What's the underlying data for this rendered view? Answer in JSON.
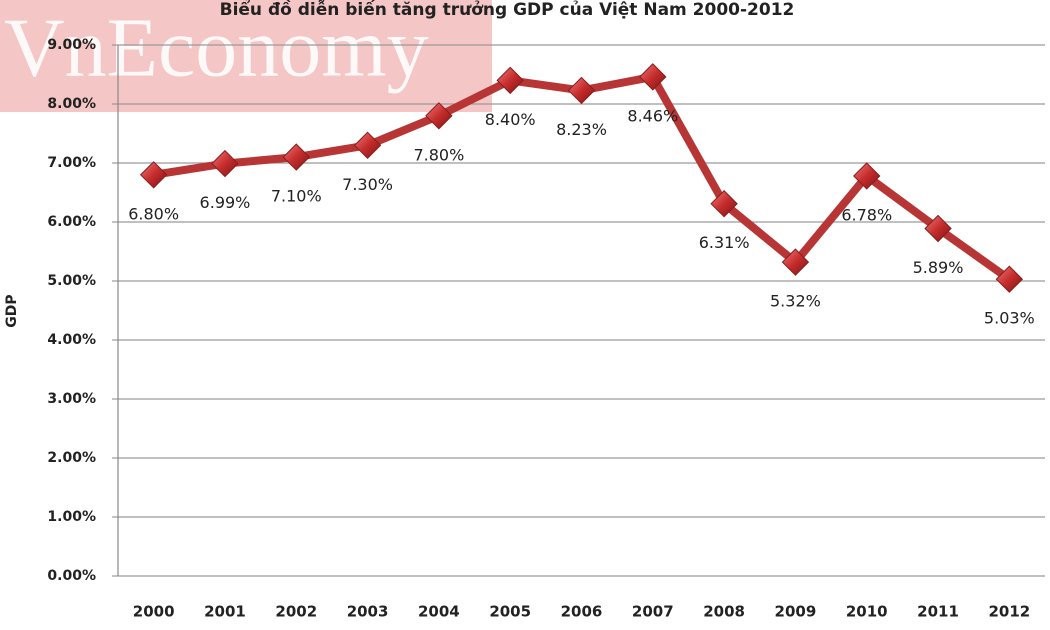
{
  "chart_data": {
    "type": "line",
    "title": "Biểu đồ diễn biến tăng trưởng GDP của Việt Nam 2000-2012",
    "watermark": "VnEconomy",
    "y_label": "GDP",
    "categories": [
      "2000",
      "2001",
      "2002",
      "2003",
      "2004",
      "2005",
      "2006",
      "2007",
      "2008",
      "2009",
      "2010",
      "2011",
      "2012"
    ],
    "values": [
      6.8,
      6.99,
      7.1,
      7.3,
      7.8,
      8.4,
      8.23,
      8.46,
      6.31,
      5.32,
      6.78,
      5.89,
      5.03
    ],
    "value_labels": [
      "6.80%",
      "6.99%",
      "7.10%",
      "7.30%",
      "7.80%",
      "8.40%",
      "8.23%",
      "8.46%",
      "6.31%",
      "5.32%",
      "6.78%",
      "5.89%",
      "5.03%"
    ],
    "color": "#b83535",
    "ylim": [
      0,
      9
    ],
    "yticks": [
      {
        "value": 0,
        "label": "0.00%"
      },
      {
        "value": 1,
        "label": "1.00%"
      },
      {
        "value": 2,
        "label": "2.00%"
      },
      {
        "value": 3,
        "label": "3.00%"
      },
      {
        "value": 4,
        "label": "4.00%"
      },
      {
        "value": 5,
        "label": "5.00%"
      },
      {
        "value": 6,
        "label": "6.00%"
      },
      {
        "value": 7,
        "label": "7.00%"
      },
      {
        "value": 8,
        "label": "8.00%"
      },
      {
        "value": 9,
        "label": "9.00%"
      }
    ],
    "grid": true
  }
}
